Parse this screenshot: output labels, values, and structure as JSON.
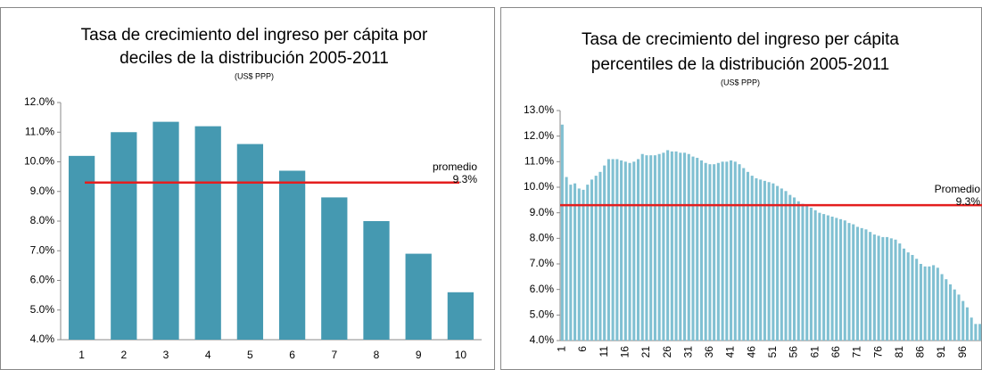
{
  "chart_data": [
    {
      "type": "bar",
      "title": [
        "Tasa de crecimiento del ingreso per cápita por",
        "deciles de la distribución 2005-2011"
      ],
      "subtitle": "(US$ PPP)",
      "categories": [
        "1",
        "2",
        "3",
        "4",
        "5",
        "6",
        "7",
        "8",
        "9",
        "10"
      ],
      "values": [
        10.2,
        11.0,
        11.35,
        11.2,
        10.6,
        9.7,
        8.8,
        8.0,
        6.9,
        5.6
      ],
      "color": "#4599b1",
      "ylim": [
        4,
        12
      ],
      "yticks": [
        {
          "value": 4,
          "label": "4.0%"
        },
        {
          "value": 5,
          "label": "5.0%"
        },
        {
          "value": 6,
          "label": "6.0%"
        },
        {
          "value": 7,
          "label": "7.0%"
        },
        {
          "value": 8,
          "label": "8.0%"
        },
        {
          "value": 9,
          "label": "9.0%"
        },
        {
          "value": 10,
          "label": "10.0%"
        },
        {
          "value": 11,
          "label": "11.0%"
        },
        {
          "value": 12,
          "label": "12.0%"
        }
      ],
      "reference_line": {
        "label": "promedio",
        "value": 9.3,
        "value_label": "9.3%",
        "color": "#e41e1e"
      }
    },
    {
      "type": "bar",
      "title": [
        "Tasa de crecimiento del ingreso per cápita",
        "percentiles de la distribución 2005-2011"
      ],
      "subtitle": "(US$ PPP)",
      "categories": [
        "1",
        null,
        null,
        null,
        null,
        "6",
        null,
        null,
        null,
        null,
        "11",
        null,
        null,
        null,
        null,
        "16",
        null,
        null,
        null,
        null,
        "21",
        null,
        null,
        null,
        null,
        "26",
        null,
        null,
        null,
        null,
        "31",
        null,
        null,
        null,
        null,
        "36",
        null,
        null,
        null,
        null,
        "41",
        null,
        null,
        null,
        null,
        "46",
        null,
        null,
        null,
        null,
        "51",
        null,
        null,
        null,
        null,
        "56",
        null,
        null,
        null,
        null,
        "61",
        null,
        null,
        null,
        null,
        "66",
        null,
        null,
        null,
        null,
        "71",
        null,
        null,
        null,
        null,
        "76",
        null,
        null,
        null,
        null,
        "81",
        null,
        null,
        null,
        null,
        "86",
        null,
        null,
        null,
        null,
        "91",
        null,
        null,
        null,
        null,
        "96",
        null,
        null,
        null,
        null
      ],
      "values": [
        12.45,
        10.4,
        10.1,
        10.15,
        9.95,
        9.9,
        10.1,
        10.3,
        10.45,
        10.6,
        10.85,
        11.1,
        11.1,
        11.1,
        11.05,
        11.0,
        10.95,
        11.0,
        11.1,
        11.3,
        11.25,
        11.25,
        11.25,
        11.3,
        11.35,
        11.45,
        11.4,
        11.4,
        11.35,
        11.35,
        11.3,
        11.2,
        11.15,
        11.05,
        10.95,
        10.9,
        10.9,
        10.95,
        11.0,
        11.0,
        11.05,
        11.0,
        10.9,
        10.75,
        10.6,
        10.45,
        10.35,
        10.3,
        10.25,
        10.2,
        10.15,
        10.05,
        9.95,
        9.85,
        9.7,
        9.6,
        9.45,
        9.35,
        9.3,
        9.2,
        9.1,
        9.0,
        8.95,
        8.9,
        8.85,
        8.8,
        8.75,
        8.7,
        8.6,
        8.55,
        8.45,
        8.4,
        8.35,
        8.25,
        8.15,
        8.1,
        8.05,
        8.05,
        8.0,
        7.95,
        7.8,
        7.6,
        7.45,
        7.35,
        7.2,
        7.0,
        6.9,
        6.9,
        6.95,
        6.85,
        6.6,
        6.4,
        6.2,
        6.0,
        5.8,
        5.55,
        5.3,
        4.9,
        4.65,
        4.65
      ],
      "color": "#80c0d2",
      "ylim": [
        4,
        13
      ],
      "yticks": [
        {
          "value": 4,
          "label": "4.0%"
        },
        {
          "value": 5,
          "label": "5.0%"
        },
        {
          "value": 6,
          "label": "6.0%"
        },
        {
          "value": 7,
          "label": "7.0%"
        },
        {
          "value": 8,
          "label": "8.0%"
        },
        {
          "value": 9,
          "label": "9.0%"
        },
        {
          "value": 10,
          "label": "10.0%"
        },
        {
          "value": 11,
          "label": "11.0%"
        },
        {
          "value": 12,
          "label": "12.0%"
        },
        {
          "value": 13,
          "label": "13.0%"
        }
      ],
      "reference_line": {
        "label": "Promedio",
        "value": 9.3,
        "value_label": "9.3%",
        "color": "#e41e1e"
      }
    }
  ]
}
